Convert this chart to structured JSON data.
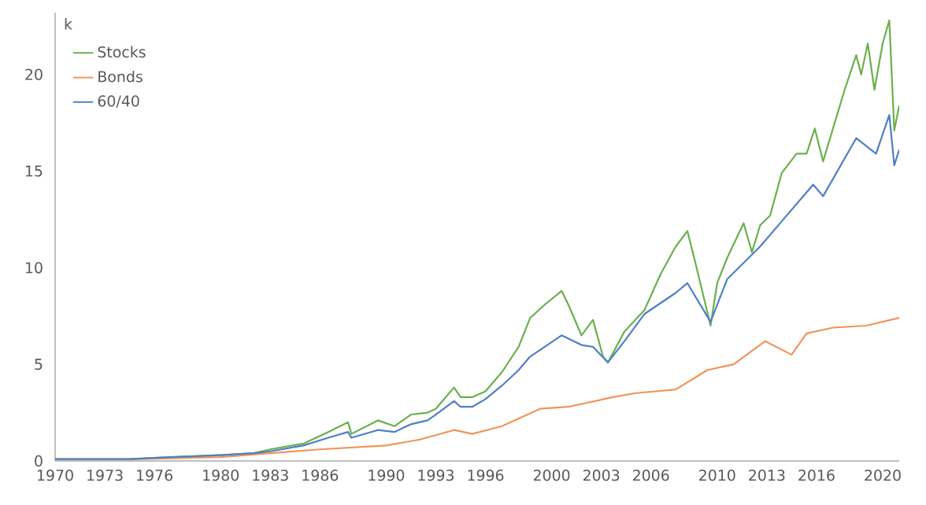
{
  "chart_data": {
    "type": "line",
    "ylabel": "k",
    "xlim": [
      1970,
      2021
    ],
    "ylim": [
      0,
      23.2
    ],
    "xticks": [
      1970,
      1973,
      1976,
      1980,
      1983,
      1986,
      1990,
      1993,
      1996,
      2000,
      2003,
      2006,
      2010,
      2013,
      2016,
      2020
    ],
    "yticks": [
      0,
      5,
      10,
      15,
      20
    ],
    "grid": false,
    "legend": "top left",
    "series": [
      {
        "name": "Stocks",
        "color": "#6ab04c",
        "x": [
          1974.5,
          1977,
          1980,
          1982,
          1983,
          1985,
          1986.5,
          1987.7,
          1987.9,
          1989.5,
          1990.5,
          1991.5,
          1992.5,
          1993,
          1994.1,
          1994.5,
          1995.2,
          1996,
          1997,
          1998,
          1998.7,
          1999.6,
          2000.6,
          2001,
          2001.8,
          2002.5,
          2003.1,
          2003.4,
          2004.4,
          2005.6,
          2006.6,
          2007.5,
          2008.2,
          2008.7,
          2009.6,
          2010,
          2010.6,
          2011.6,
          2012.1,
          2012.6,
          2013.2,
          2013.9,
          2014.8,
          2015.4,
          2015.9,
          2016.4,
          2017.7,
          2018.4,
          2018.7,
          2019.1,
          2019.5,
          2020,
          2020.4,
          2020.7,
          2021
        ],
        "values": [
          0.1,
          0.2,
          0.3,
          0.4,
          0.6,
          0.9,
          1.5,
          2.0,
          1.4,
          2.1,
          1.8,
          2.4,
          2.5,
          2.7,
          3.8,
          3.3,
          3.3,
          3.6,
          4.6,
          5.9,
          7.4,
          8.1,
          8.8,
          8.1,
          6.5,
          7.3,
          5.4,
          5.1,
          6.7,
          7.8,
          9.7,
          11.1,
          11.9,
          10.2,
          7.0,
          9.2,
          10.5,
          12.3,
          10.8,
          12.2,
          12.7,
          14.9,
          15.9,
          15.9,
          17.2,
          15.5,
          19.2,
          21.0,
          20.0,
          21.6,
          19.2,
          21.6,
          22.8,
          17.1,
          18.4
        ]
      },
      {
        "name": "Bonds",
        "color": "#f0945a",
        "x": [
          1970,
          1975,
          1980,
          1983,
          1986,
          1990,
          1992,
          1994.1,
          1995.2,
          1997,
          1999.3,
          2001,
          2003.7,
          2005,
          2007.5,
          2009.4,
          2011,
          2012.9,
          2014.5,
          2015.4,
          2017,
          2019,
          2021
        ],
        "values": [
          0.1,
          0.1,
          0.2,
          0.4,
          0.6,
          0.8,
          1.1,
          1.6,
          1.4,
          1.8,
          2.7,
          2.8,
          3.3,
          3.5,
          3.7,
          4.7,
          5.0,
          6.2,
          5.5,
          6.6,
          6.9,
          7.0,
          7.4
        ]
      },
      {
        "name": "60/40",
        "color": "#4f7fc4",
        "x": [
          1970,
          1973,
          1974.5,
          1977,
          1980,
          1982,
          1983,
          1985,
          1986.5,
          1987.7,
          1987.9,
          1989.5,
          1990.5,
          1991.5,
          1992.5,
          1993,
          1994.1,
          1994.5,
          1995.2,
          1996,
          1997,
          1998,
          1998.7,
          2000.6,
          2001.8,
          2002.5,
          2003.4,
          2004.4,
          2005.6,
          2007.5,
          2008.2,
          2009.6,
          2010.6,
          2012.6,
          2013.9,
          2015.8,
          2016.4,
          2018.4,
          2019.6,
          2020.4,
          2020.7,
          2021
        ],
        "values": [
          0.1,
          0.1,
          0.1,
          0.2,
          0.3,
          0.4,
          0.5,
          0.8,
          1.2,
          1.5,
          1.2,
          1.6,
          1.5,
          1.9,
          2.1,
          2.4,
          3.1,
          2.8,
          2.8,
          3.2,
          3.9,
          4.7,
          5.4,
          6.5,
          6.0,
          5.9,
          5.1,
          6.2,
          7.6,
          8.7,
          9.2,
          7.2,
          9.4,
          11.1,
          12.4,
          14.3,
          13.7,
          16.7,
          15.9,
          17.9,
          15.3,
          16.1
        ]
      }
    ]
  }
}
